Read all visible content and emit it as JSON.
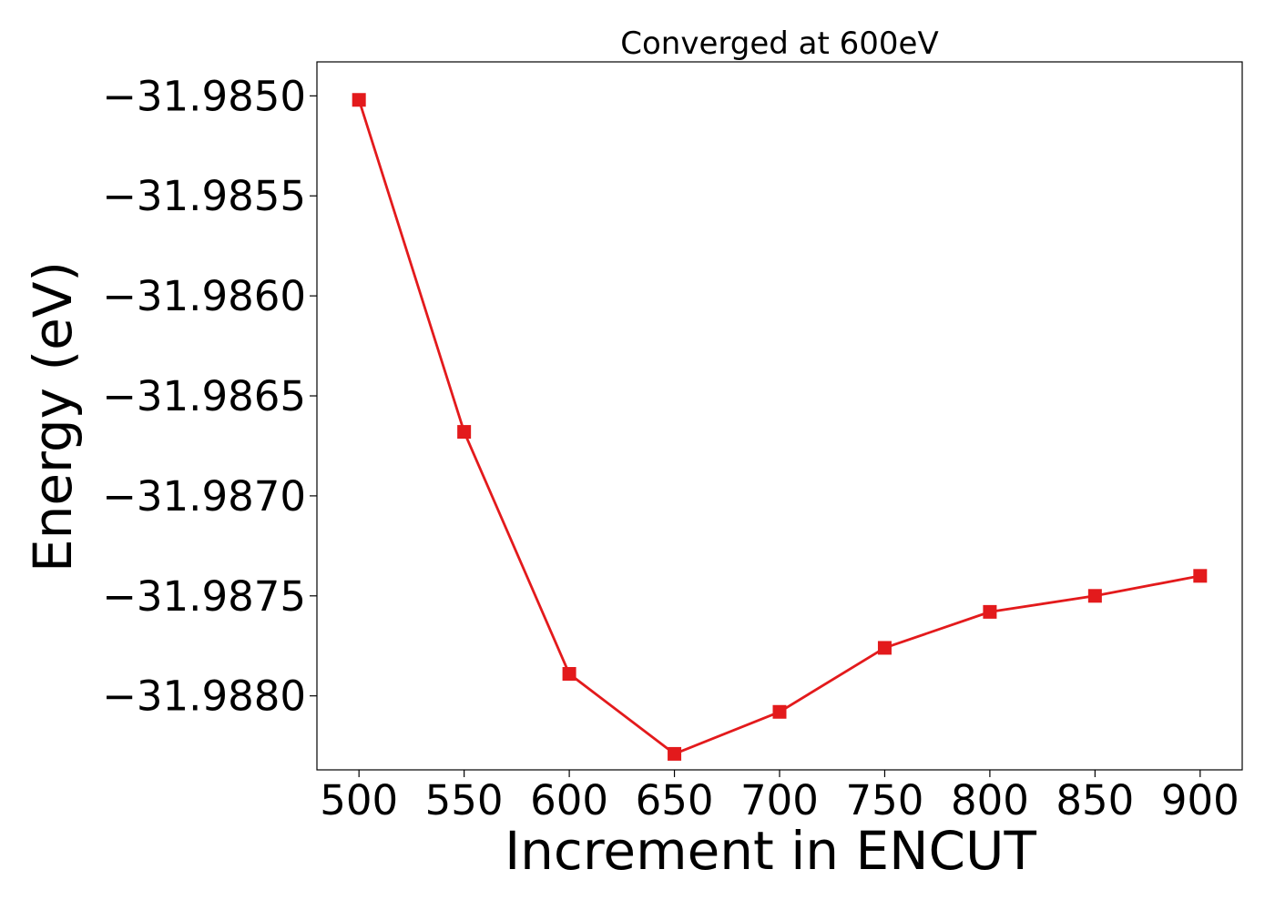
{
  "chart_data": {
    "type": "line",
    "title": "Converged at 600eV",
    "xlabel": "Increment in ENCUT",
    "ylabel": "Energy (eV)",
    "x": [
      500,
      550,
      600,
      650,
      700,
      750,
      800,
      850,
      900
    ],
    "series": [
      {
        "values": [
          -31.98502,
          -31.98668,
          -31.98789,
          -31.98829,
          -31.98808,
          -31.98776,
          -31.98758,
          -31.9875,
          -31.9874
        ],
        "color": "#e31a1c",
        "marker": "square"
      }
    ],
    "xticks": [
      500,
      550,
      600,
      650,
      700,
      750,
      800,
      850,
      900
    ],
    "xtick_labels": [
      "500",
      "550",
      "600",
      "650",
      "700",
      "750",
      "800",
      "850",
      "900"
    ],
    "yticks": [
      -31.985,
      -31.9855,
      -31.986,
      -31.9865,
      -31.987,
      -31.9875,
      -31.988
    ],
    "ytick_labels": [
      "−31.9850",
      "−31.9855",
      "−31.9860",
      "−31.9865",
      "−31.9870",
      "−31.9875",
      "−31.9880"
    ],
    "xlim": [
      480,
      920
    ],
    "ylim": [
      -31.98837,
      -31.98483
    ],
    "grid": false,
    "legend": "none"
  }
}
